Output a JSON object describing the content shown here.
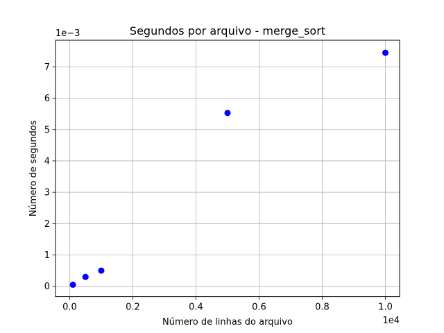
{
  "chart_data": {
    "type": "scatter",
    "title": "Segundos por arquivo - merge_sort",
    "xlabel": "Número de linhas do arquivo",
    "ylabel": "Número de segundos",
    "x_offset_text": "1e4",
    "y_offset_text": "1e−3",
    "x_ticks": [
      "0.0",
      "0.2",
      "0.4",
      "0.6",
      "0.8",
      "1.0"
    ],
    "y_ticks": [
      "0",
      "1",
      "2",
      "3",
      "4",
      "5",
      "6",
      "7"
    ],
    "xlim": [
      -450,
      10450
    ],
    "ylim": [
      -0.00033,
      0.00785
    ],
    "grid": true,
    "marker_color": "#0000ff",
    "series": [
      {
        "x": [
          100,
          500,
          1000,
          5000,
          10000
        ],
        "y": [
          5e-05,
          0.0003,
          0.0005,
          0.00553,
          0.00745
        ]
      }
    ]
  }
}
